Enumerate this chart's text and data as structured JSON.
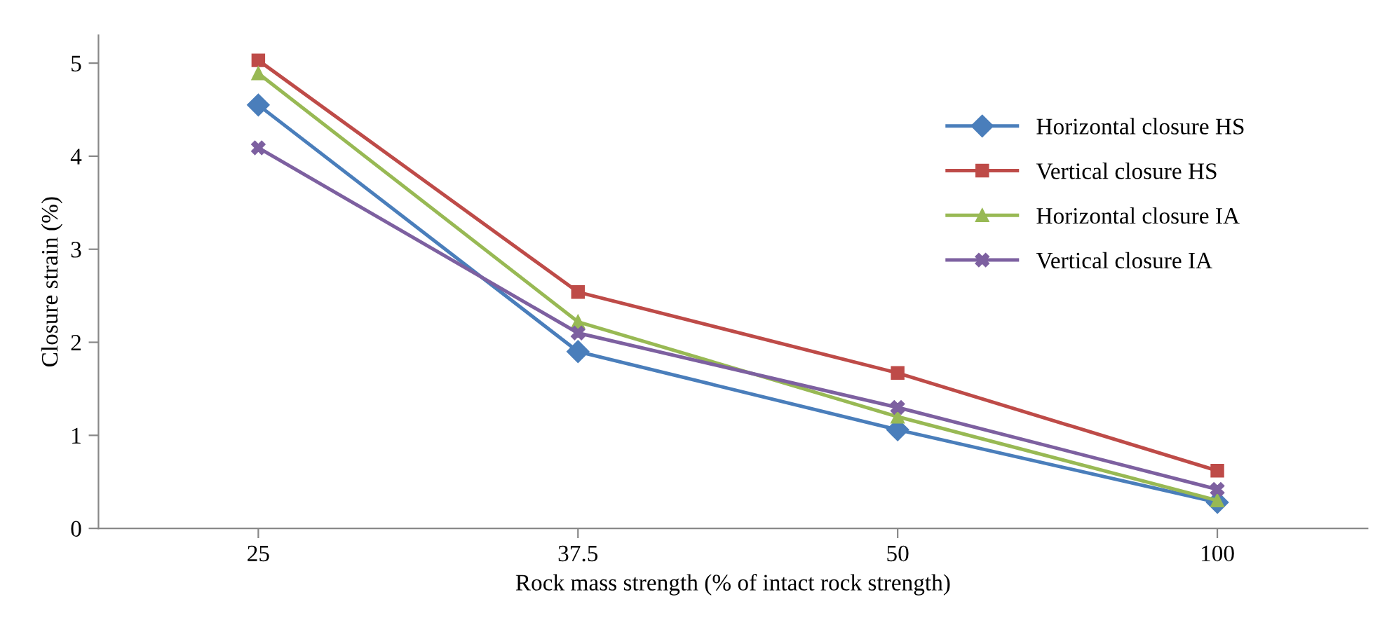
{
  "chart_data": {
    "type": "line",
    "xlabel": "Rock mass strength (% of intact rock strength)",
    "ylabel": "Closure strain (%)",
    "categories": [
      "25",
      "37.5",
      "50",
      "100"
    ],
    "series": [
      {
        "name": "Horizontal closure HS",
        "color": "#4a7ebb",
        "marker": "diamond",
        "values": [
          4.55,
          1.9,
          1.06,
          0.28
        ]
      },
      {
        "name": "Vertical closure HS",
        "color": "#be4b48",
        "marker": "square",
        "values": [
          5.03,
          2.54,
          1.67,
          0.62
        ]
      },
      {
        "name": "Horizontal closure IA",
        "color": "#98b954",
        "marker": "triangle",
        "values": [
          4.89,
          2.22,
          1.2,
          0.3
        ]
      },
      {
        "name": "Vertical closure IA",
        "color": "#7d60a0",
        "marker": "cross",
        "values": [
          4.09,
          2.1,
          1.3,
          0.42
        ]
      }
    ],
    "ylim": [
      0,
      5.3
    ],
    "yticks": [
      0,
      1,
      2,
      3,
      4,
      5
    ],
    "grid": false,
    "legend": "right",
    "line_style": "solid"
  }
}
